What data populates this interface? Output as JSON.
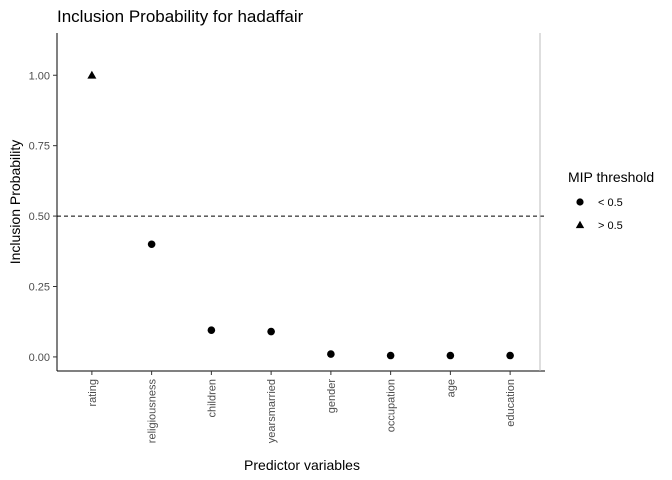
{
  "chart_data": {
    "type": "scatter",
    "title": "Inclusion Probability for hadaffair",
    "xlabel": "Predictor variables",
    "ylabel": "Inclusion Probability",
    "categories": [
      "rating",
      "religiousness",
      "children",
      "yearsmarried",
      "gender",
      "occupation",
      "age",
      "education"
    ],
    "values": [
      1.0,
      0.4,
      0.095,
      0.09,
      0.01,
      0.005,
      0.005,
      0.005
    ],
    "groups": [
      "> 0.5",
      "< 0.5",
      "< 0.5",
      "< 0.5",
      "< 0.5",
      "< 0.5",
      "< 0.5",
      "< 0.5"
    ],
    "ylim": [
      -0.05,
      1.15
    ],
    "yticks": [
      "0.00",
      "0.25",
      "0.50",
      "0.75",
      "1.00"
    ],
    "ytick_values": [
      0,
      0.25,
      0.5,
      0.75,
      1.0
    ],
    "threshold": 0.5,
    "grid": false,
    "legend": {
      "title": "MIP threshold",
      "placement": "right",
      "items": [
        {
          "label": "< 0.5",
          "shape": "circle"
        },
        {
          "label": "> 0.5",
          "shape": "triangle"
        }
      ]
    }
  }
}
